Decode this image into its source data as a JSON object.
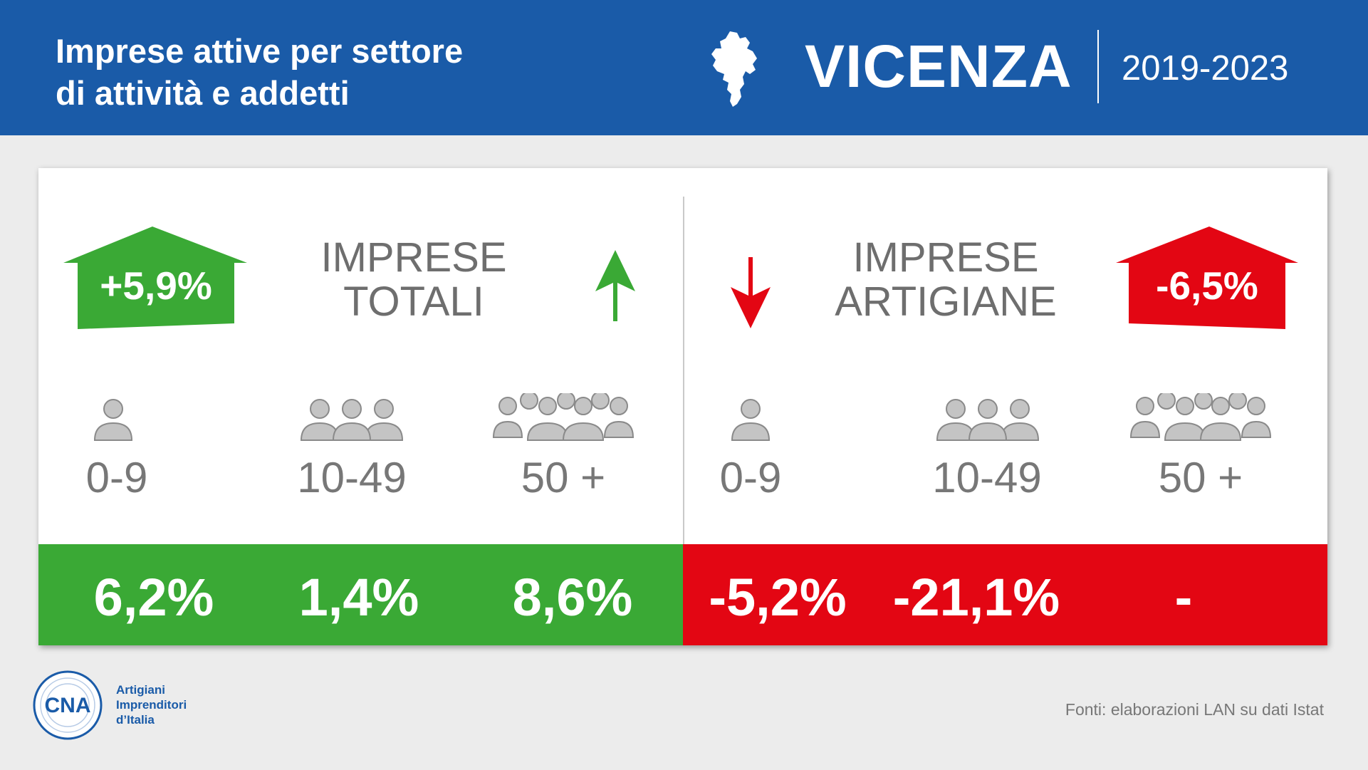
{
  "header": {
    "title_line1": "Imprese attive per settore",
    "title_line2": "di attività e addetti",
    "city": "VICENZA",
    "years": "2019-2023"
  },
  "totali": {
    "badge": "+5,9%",
    "title_line1": "IMPRESE",
    "title_line2": "TOTALI",
    "trend": "up",
    "groups": [
      {
        "label": "0-9",
        "value": "6,2%"
      },
      {
        "label": "10-49",
        "value": "1,4%"
      },
      {
        "label": "50 +",
        "value": "8,6%"
      }
    ]
  },
  "artigiane": {
    "badge": "-6,5%",
    "title_line1": "IMPRESE",
    "title_line2": "ARTIGIANE",
    "trend": "down",
    "groups": [
      {
        "label": "0-9",
        "value": "-5,2%"
      },
      {
        "label": "10-49",
        "value": "-21,1%"
      },
      {
        "label": "50 +",
        "value": "-"
      }
    ]
  },
  "colors": {
    "header_blue": "#1a5ba8",
    "positive_green": "#3aa935",
    "negative_red": "#e30613"
  },
  "footer": {
    "logo_text": "CNA",
    "logo_line1": "Artigiani",
    "logo_line2": "Imprenditori",
    "logo_line3": "d’Italia",
    "source": "Fonti: elaborazioni LAN su dati Istat"
  }
}
